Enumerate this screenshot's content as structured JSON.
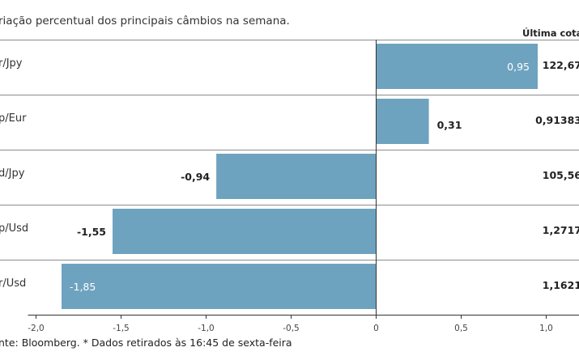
{
  "subtitle": "riação percentual dos principais câmbios na semana.",
  "quote_header": "Última cotaç",
  "footnote": "nte: Bloomberg.  * Dados retirados às 16:45 de sexta-feira",
  "chart_data": {
    "type": "bar",
    "orientation": "horizontal",
    "categories": [
      "r/Jpy",
      "p/Eur",
      "d/Jpy",
      "p/Usd",
      "r/Usd"
    ],
    "values": [
      0.95,
      0.31,
      -0.94,
      -1.55,
      -1.85
    ],
    "value_labels": [
      "0,95",
      "0,31",
      "-0,94",
      "-1,55",
      "-1,85"
    ],
    "last_quotes": [
      "122,67",
      "0,91383",
      "105,56",
      "1,2717",
      "1,1621"
    ],
    "xlim": [
      -2.0,
      1.0
    ],
    "x_ticks": [
      -2.0,
      -1.5,
      -1.0,
      -0.5,
      0,
      0.5,
      1.0
    ],
    "x_tick_labels": [
      "-2,0",
      "-1,5",
      "-1,0",
      "-0,5",
      "0",
      "0,5",
      "1,0"
    ],
    "grid": false,
    "bar_color": "#6ea3bf"
  }
}
